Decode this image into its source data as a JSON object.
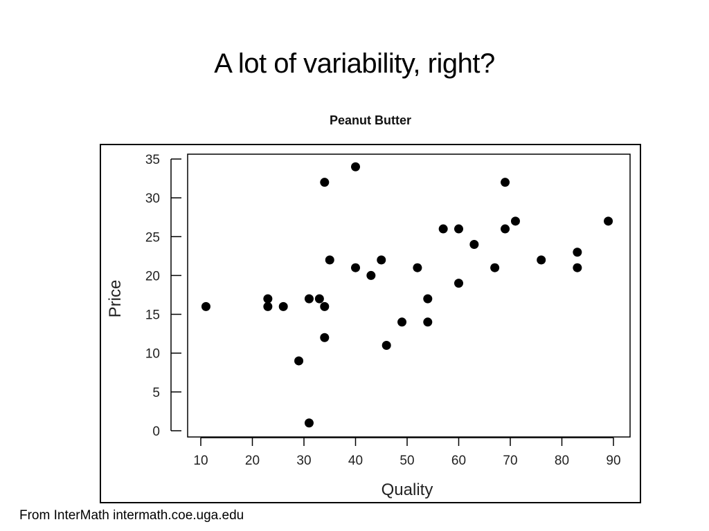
{
  "slide": {
    "title": "A lot of variability, right?",
    "footer": "From InterMath intermath.coe.uga.edu"
  },
  "chart_data": {
    "type": "scatter",
    "title": "Peanut Butter",
    "xlabel": "Quality",
    "ylabel": "Price",
    "xlim": [
      8,
      93
    ],
    "ylim": [
      -1,
      35.5
    ],
    "xticks": [
      10,
      20,
      30,
      40,
      50,
      60,
      70,
      80,
      90
    ],
    "yticks": [
      0,
      5,
      10,
      15,
      20,
      25,
      30,
      35
    ],
    "grid": false,
    "marker_color": "#000000",
    "points": [
      {
        "x": 11,
        "y": 16
      },
      {
        "x": 23,
        "y": 17
      },
      {
        "x": 23,
        "y": 16
      },
      {
        "x": 26,
        "y": 16
      },
      {
        "x": 29,
        "y": 9
      },
      {
        "x": 31,
        "y": 17
      },
      {
        "x": 31,
        "y": 1
      },
      {
        "x": 33,
        "y": 17
      },
      {
        "x": 34,
        "y": 32
      },
      {
        "x": 34,
        "y": 16
      },
      {
        "x": 34,
        "y": 12
      },
      {
        "x": 35,
        "y": 22
      },
      {
        "x": 40,
        "y": 34
      },
      {
        "x": 40,
        "y": 21
      },
      {
        "x": 43,
        "y": 20
      },
      {
        "x": 45,
        "y": 22
      },
      {
        "x": 46,
        "y": 11
      },
      {
        "x": 49,
        "y": 14
      },
      {
        "x": 52,
        "y": 21
      },
      {
        "x": 54,
        "y": 17
      },
      {
        "x": 54,
        "y": 14
      },
      {
        "x": 57,
        "y": 26
      },
      {
        "x": 60,
        "y": 26
      },
      {
        "x": 60,
        "y": 19
      },
      {
        "x": 63,
        "y": 24
      },
      {
        "x": 67,
        "y": 21
      },
      {
        "x": 69,
        "y": 32
      },
      {
        "x": 69,
        "y": 26
      },
      {
        "x": 71,
        "y": 27
      },
      {
        "x": 76,
        "y": 22
      },
      {
        "x": 83,
        "y": 23
      },
      {
        "x": 83,
        "y": 21
      },
      {
        "x": 89,
        "y": 27
      }
    ]
  }
}
